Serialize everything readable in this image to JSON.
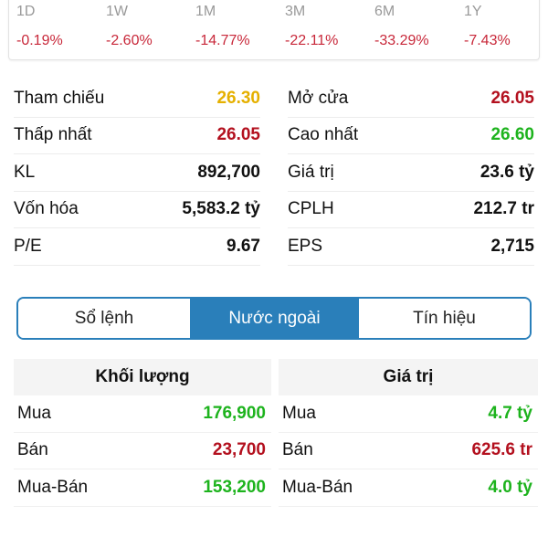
{
  "colors": {
    "up": "#1db31d",
    "down": "#b3101e",
    "ref": "#e5b000",
    "perf_down": "#c8283a",
    "accent": "#2a7fba"
  },
  "performance": [
    {
      "period": "1D",
      "change": "-0.19%"
    },
    {
      "period": "1W",
      "change": "-2.60%"
    },
    {
      "period": "1M",
      "change": "-14.77%"
    },
    {
      "period": "3M",
      "change": "-22.11%"
    },
    {
      "period": "6M",
      "change": "-33.29%"
    },
    {
      "period": "1Y",
      "change": "-7.43%"
    }
  ],
  "stats": [
    {
      "left": {
        "label": "Tham chiếu",
        "value": "26.30",
        "color": "ref"
      },
      "right": {
        "label": "Mở cửa",
        "value": "26.05",
        "color": "down"
      }
    },
    {
      "left": {
        "label": "Thấp nhất",
        "value": "26.05",
        "color": "down"
      },
      "right": {
        "label": "Cao nhất",
        "value": "26.60",
        "color": "up"
      }
    },
    {
      "left": {
        "label": "KL",
        "value": "892,700"
      },
      "right": {
        "label": "Giá trị",
        "value": "23.6 tỷ"
      }
    },
    {
      "left": {
        "label": "Vốn hóa",
        "value": "5,583.2 tỷ"
      },
      "right": {
        "label": "CPLH",
        "value": "212.7 tr"
      }
    },
    {
      "left": {
        "label": "P/E",
        "value": "9.67"
      },
      "right": {
        "label": "EPS",
        "value": "2,715"
      }
    }
  ],
  "tabs": [
    {
      "label": "Sổ lệnh"
    },
    {
      "label": "Nước ngoài",
      "active": true
    },
    {
      "label": "Tín hiệu"
    }
  ],
  "foreign": {
    "volume": {
      "header": "Khối lượng",
      "rows": [
        {
          "label": "Mua",
          "value": "176,900",
          "color": "up"
        },
        {
          "label": "Bán",
          "value": "23,700",
          "color": "down"
        },
        {
          "label": "Mua-Bán",
          "value": "153,200",
          "color": "up"
        }
      ]
    },
    "value": {
      "header": "Giá trị",
      "rows": [
        {
          "label": "Mua",
          "value": "4.7 tỷ",
          "color": "up"
        },
        {
          "label": "Bán",
          "value": "625.6 tr",
          "color": "down"
        },
        {
          "label": "Mua-Bán",
          "value": "4.0 tỷ",
          "color": "up"
        }
      ]
    }
  }
}
